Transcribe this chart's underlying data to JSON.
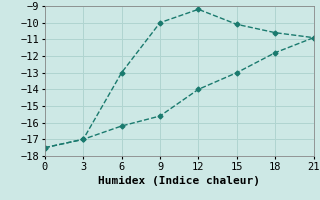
{
  "line1_x": [
    0,
    3,
    6,
    9,
    12,
    15,
    18,
    21
  ],
  "line1_y": [
    -17.5,
    -17.0,
    -13.0,
    -10.0,
    -9.2,
    -10.1,
    -10.6,
    -10.9
  ],
  "line2_x": [
    0,
    3,
    6,
    9,
    12,
    15,
    18,
    21
  ],
  "line2_y": [
    -17.5,
    -17.0,
    -16.2,
    -15.6,
    -14.0,
    -13.0,
    -11.8,
    -10.9
  ],
  "color": "#1a7a6e",
  "background": "#cde8e5",
  "grid_color": "#b0d4d0",
  "xlabel": "Humidex (Indice chaleur)",
  "xlim": [
    0,
    21
  ],
  "ylim": [
    -18,
    -9
  ],
  "xticks": [
    0,
    3,
    6,
    9,
    12,
    15,
    18,
    21
  ],
  "yticks": [
    -18,
    -17,
    -16,
    -15,
    -14,
    -13,
    -12,
    -11,
    -10,
    -9
  ],
  "marker": "D",
  "markersize": 2.5,
  "linewidth": 1.0,
  "linestyle": "--",
  "font_family": "monospace",
  "xlabel_fontsize": 8,
  "tick_fontsize": 7.5
}
